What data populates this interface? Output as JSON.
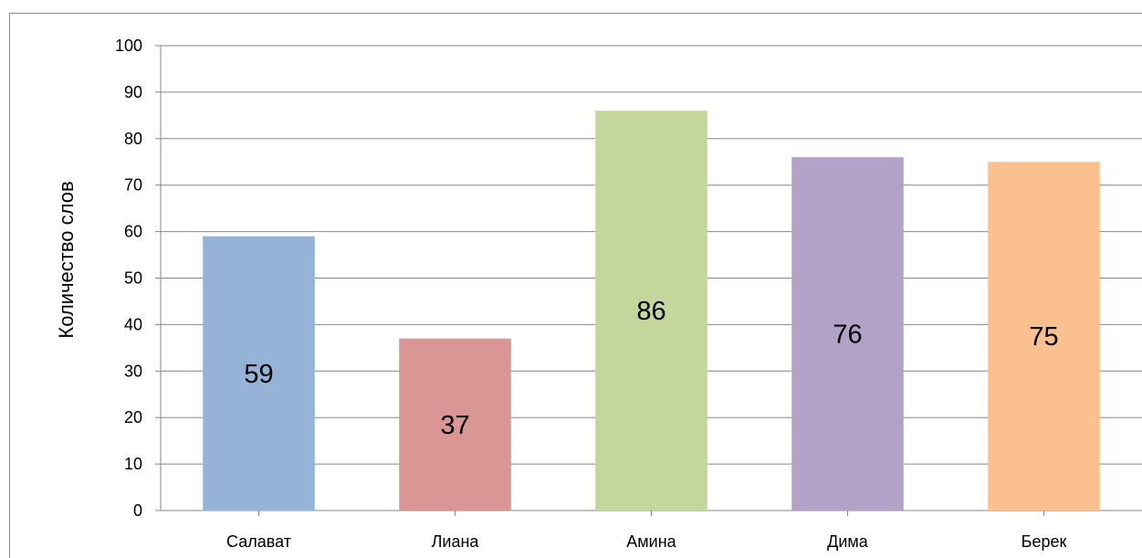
{
  "chart_data": {
    "type": "bar",
    "title": "",
    "xlabel": "",
    "ylabel": "Количество слов",
    "ylim": [
      0,
      100
    ],
    "ytick_step": 10,
    "grid": true,
    "legend": "none",
    "categories": [
      "Салават",
      "Лиана",
      "Амина",
      "Дима",
      "Берек"
    ],
    "values": [
      59,
      37,
      86,
      76,
      75
    ],
    "data_labels": [
      "59",
      "37",
      "86",
      "76",
      "75"
    ],
    "bar_colors": [
      "#95b3d7",
      "#d99694",
      "#c3d69b",
      "#b3a2c7",
      "#fac090"
    ],
    "gridline_color": "#868686",
    "frame_color": "#8c8c8c"
  }
}
